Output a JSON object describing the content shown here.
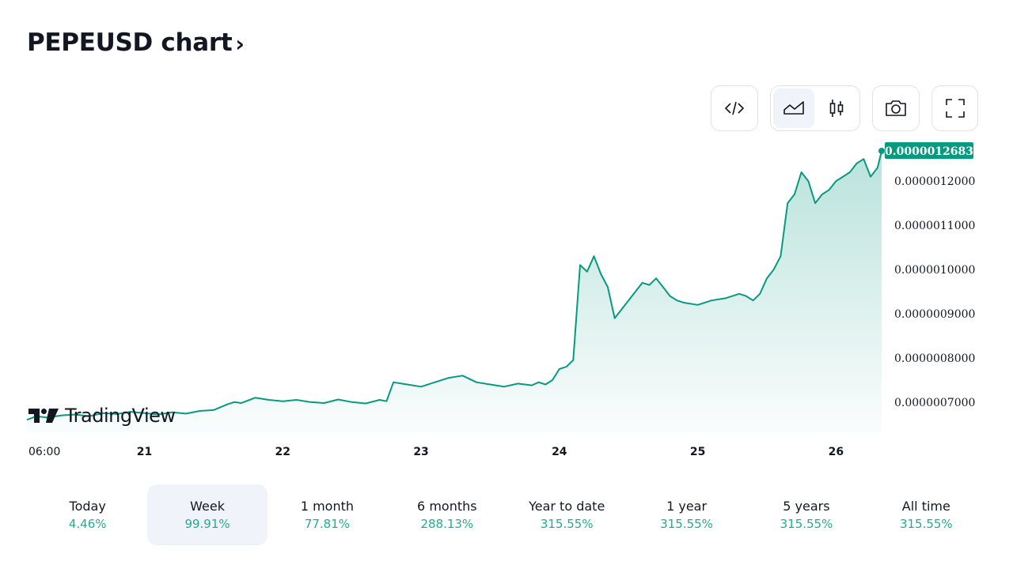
{
  "page": {
    "title": "PEPEUSD chart",
    "title_chevron": "›",
    "logo_text": "TradingView"
  },
  "toolbar": {
    "buttons": [
      {
        "name": "embed-code",
        "icon": "code-icon"
      },
      {
        "name": "area-chart",
        "icon": "area-chart-icon",
        "active": true
      },
      {
        "name": "candles-chart",
        "icon": "candlestick-icon"
      },
      {
        "name": "screenshot",
        "icon": "camera-icon"
      },
      {
        "name": "fullscreen",
        "icon": "fullscreen-icon"
      }
    ]
  },
  "colors": {
    "line": "#089981",
    "area_top": "#089981",
    "positive": "#22ab94",
    "active_bg": "#f0f3fa",
    "last_price_bg": "#089981"
  },
  "chart_data": {
    "type": "area",
    "symbol": "PEPEUSD",
    "last_price": "0.0000012683",
    "y_ticks": [
      "0.0000012000",
      "0.0000011000",
      "0.0000010000",
      "0.0000009000",
      "0.0000008000",
      "0.0000007000"
    ],
    "y_tick_values": [
      1.2e-06,
      1.1e-06,
      1e-06,
      9e-07,
      8e-07,
      7e-07
    ],
    "x_ticks": [
      "06:00",
      "21",
      "22",
      "23",
      "24",
      "25",
      "26"
    ],
    "x_tick_days": [
      20.25,
      21,
      22,
      23,
      24,
      25,
      26
    ],
    "x_range_days": [
      20.15,
      26.33
    ],
    "ylim": [
      6.3e-07,
      1.27e-06
    ],
    "grid": false,
    "series": [
      {
        "x_days": [
          20.15,
          20.22,
          20.3,
          20.4,
          20.5,
          20.6,
          20.7,
          20.8,
          20.9,
          21.0,
          21.1,
          21.2,
          21.3,
          21.4,
          21.5,
          21.6,
          21.65,
          21.7,
          21.8,
          21.9,
          22.0,
          22.1,
          22.2,
          22.3,
          22.4,
          22.5,
          22.6,
          22.7,
          22.75,
          22.8,
          22.9,
          23.0,
          23.1,
          23.2,
          23.3,
          23.4,
          23.5,
          23.6,
          23.7,
          23.8,
          23.85,
          23.9,
          23.95,
          24.0,
          24.05,
          24.1,
          24.15,
          24.2,
          24.25,
          24.3,
          24.35,
          24.4,
          24.45,
          24.5,
          24.55,
          24.6,
          24.65,
          24.7,
          24.75,
          24.8,
          24.85,
          24.9,
          25.0,
          25.1,
          25.2,
          25.3,
          25.35,
          25.4,
          25.45,
          25.5,
          25.55,
          25.6,
          25.65,
          25.7,
          25.75,
          25.8,
          25.85,
          25.9,
          25.95,
          26.0,
          26.05,
          26.1,
          26.15,
          26.2,
          26.25,
          26.3,
          26.33
        ],
        "values": [
          6.6e-07,
          6.68e-07,
          6.65e-07,
          6.7e-07,
          6.72e-07,
          6.68e-07,
          6.75e-07,
          6.73e-07,
          6.78e-07,
          6.75e-07,
          6.72e-07,
          6.77e-07,
          6.74e-07,
          6.8e-07,
          6.82e-07,
          6.95e-07,
          7e-07,
          6.98e-07,
          7.1e-07,
          7.05e-07,
          7.02e-07,
          7.05e-07,
          7e-07,
          6.98e-07,
          7.06e-07,
          7e-07,
          6.97e-07,
          7.05e-07,
          7.02e-07,
          7.45e-07,
          7.4e-07,
          7.35e-07,
          7.45e-07,
          7.55e-07,
          7.6e-07,
          7.45e-07,
          7.4e-07,
          7.35e-07,
          7.42e-07,
          7.38e-07,
          7.45e-07,
          7.4e-07,
          7.5e-07,
          7.75e-07,
          7.8e-07,
          7.95e-07,
          1.01e-06,
          9.95e-07,
          1.03e-06,
          9.9e-07,
          9.6e-07,
          8.9e-07,
          9.1e-07,
          9.3e-07,
          9.5e-07,
          9.7e-07,
          9.65e-07,
          9.8e-07,
          9.6e-07,
          9.4e-07,
          9.3e-07,
          9.25e-07,
          9.2e-07,
          9.3e-07,
          9.35e-07,
          9.45e-07,
          9.4e-07,
          9.3e-07,
          9.45e-07,
          9.8e-07,
          1e-06,
          1.03e-06,
          1.15e-06,
          1.17e-06,
          1.22e-06,
          1.2e-06,
          1.15e-06,
          1.17e-06,
          1.18e-06,
          1.2e-06,
          1.21e-06,
          1.22e-06,
          1.24e-06,
          1.25e-06,
          1.21e-06,
          1.23e-06,
          1.2683e-06
        ]
      }
    ]
  },
  "periods": [
    {
      "label": "Today",
      "change": "4.46%"
    },
    {
      "label": "Week",
      "change": "99.91%",
      "active": true
    },
    {
      "label": "1 month",
      "change": "77.81%"
    },
    {
      "label": "6 months",
      "change": "288.13%"
    },
    {
      "label": "Year to date",
      "change": "315.55%"
    },
    {
      "label": "1 year",
      "change": "315.55%"
    },
    {
      "label": "5 years",
      "change": "315.55%"
    },
    {
      "label": "All time",
      "change": "315.55%"
    }
  ]
}
